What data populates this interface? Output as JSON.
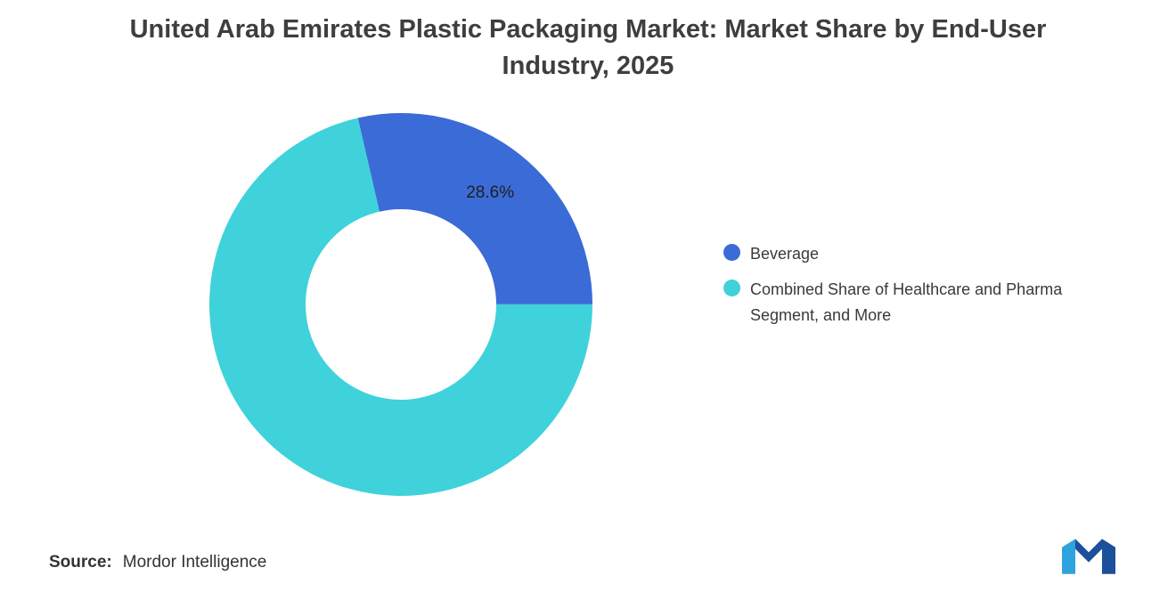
{
  "title": {
    "line1": "United Arab Emirates Plastic Packaging Market: Market Share by End-User",
    "line2": "Industry, 2025"
  },
  "chart_data": {
    "type": "pie",
    "subtype": "donut",
    "title": "United Arab Emirates Plastic Packaging Market: Market Share by End-User Industry, 2025",
    "slices": [
      {
        "label": "Beverage",
        "value": 28.6,
        "color": "#3b6bd6",
        "data_label": "28.6%"
      },
      {
        "label": "Combined Share of Healthcare and Pharma Segment, and More",
        "value": 71.4,
        "color": "#3fd2da",
        "data_label": ""
      }
    ],
    "total": 100,
    "rotation_deg": -13,
    "inner_radius_ratio": 0.5,
    "legend_position": "right",
    "data_labels": "percent shown on Beverage slice only"
  },
  "source": {
    "label": "Source:",
    "value": "Mordor Intelligence"
  },
  "logo": {
    "name": "mordor-intelligence-logo",
    "color_light": "#2fa3de",
    "color_dark": "#1c4f9c"
  }
}
